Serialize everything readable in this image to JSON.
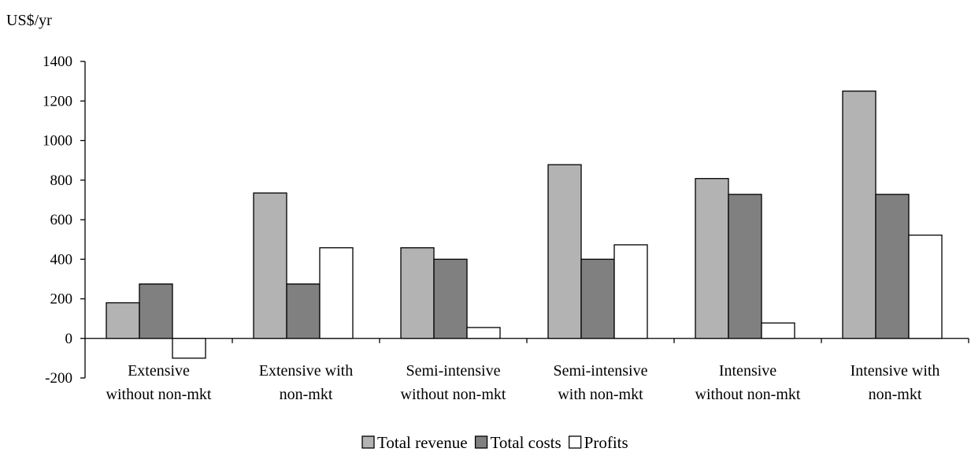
{
  "chart_data": {
    "type": "bar",
    "ylabel": "US$/yr",
    "ylim": [
      -200,
      1400
    ],
    "yticks": [
      -200,
      0,
      200,
      400,
      600,
      800,
      1000,
      1200,
      1400
    ],
    "grid": false,
    "legend_position": "bottom-center",
    "categories": [
      [
        "Extensive",
        "without non-mkt"
      ],
      [
        "Extensive with",
        "non-mkt"
      ],
      [
        "Semi-intensive",
        "without non-mkt"
      ],
      [
        "Semi-intensive",
        "with non-mkt"
      ],
      [
        "Intensive",
        "without non-mkt"
      ],
      [
        "Intensive with",
        "non-mkt"
      ]
    ],
    "series": [
      {
        "name": "Total revenue",
        "color": "#b3b3b3",
        "values": [
          180,
          735,
          458,
          878,
          808,
          1250
        ]
      },
      {
        "name": "Total costs",
        "color": "#808080",
        "values": [
          275,
          275,
          400,
          400,
          728,
          728
        ]
      },
      {
        "name": "Profits",
        "color": "#ffffff",
        "values": [
          -100,
          458,
          55,
          473,
          78,
          522
        ]
      }
    ]
  }
}
